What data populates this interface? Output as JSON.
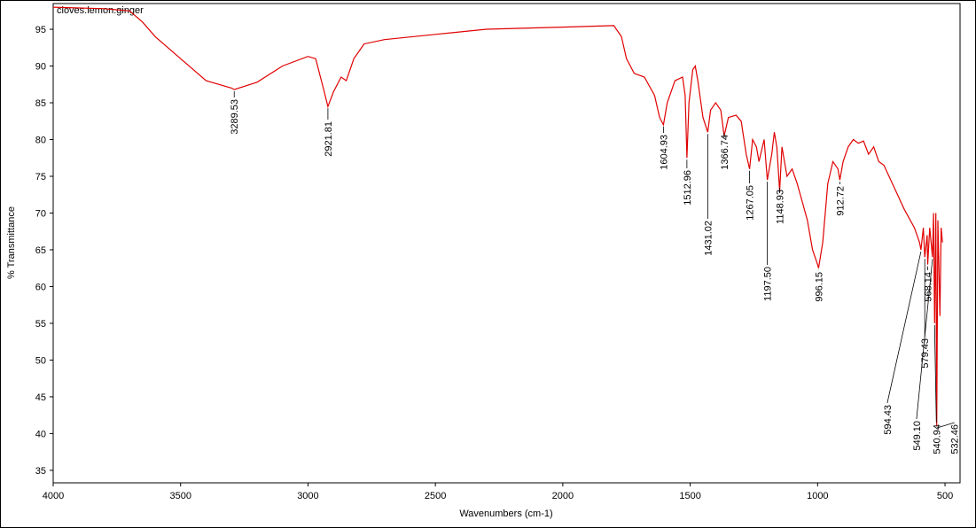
{
  "chart_data": {
    "type": "line",
    "title": "cloves.lemon.ginger",
    "x_label": "Wavenumbers (cm-1)",
    "y_label": "% Transmittance",
    "xlim": [
      4000,
      441
    ],
    "ylim": [
      33.3,
      98.5
    ],
    "xticks": [
      4000,
      3500,
      3000,
      2500,
      2000,
      1500,
      1000,
      500
    ],
    "yticks": [
      35,
      40,
      45,
      50,
      55,
      60,
      65,
      70,
      75,
      80,
      85,
      90,
      95
    ],
    "series": [
      {
        "color": "#e00000",
        "x": [
          4000,
          3800,
          3700,
          3650,
          3600,
          3500,
          3400,
          3300,
          3289.53,
          3200,
          3100,
          3000,
          2970,
          2940,
          2921.81,
          2900,
          2870,
          2850,
          2820,
          2780,
          2700,
          2500,
          2300,
          2000,
          1800,
          1770,
          1750,
          1720,
          1680,
          1640,
          1620,
          1604.93,
          1590,
          1560,
          1530,
          1520,
          1512.96,
          1505,
          1490,
          1480,
          1470,
          1450,
          1431.02,
          1420,
          1400,
          1380,
          1366.74,
          1350,
          1320,
          1300,
          1280,
          1267.05,
          1255,
          1240,
          1230,
          1210,
          1197.5,
          1180,
          1170,
          1160,
          1148.93,
          1140,
          1120,
          1100,
          1080,
          1060,
          1040,
          1020,
          1000,
          996.15,
          980,
          960,
          940,
          920,
          912.72,
          900,
          880,
          860,
          840,
          820,
          800,
          780,
          760,
          740,
          700,
          660,
          620,
          600,
          594.43,
          585,
          579.43,
          570,
          568.14,
          560,
          549.1,
          545,
          540.94,
          536,
          532.46,
          528,
          520,
          515,
          510
        ],
        "values": [
          98,
          97.8,
          97.5,
          96,
          94,
          91,
          88,
          87,
          86.8,
          87.8,
          90,
          91.3,
          91,
          87,
          84.5,
          86.5,
          88.5,
          88,
          91,
          93,
          93.6,
          94.3,
          95,
          95.3,
          95.5,
          94,
          91,
          89,
          88.5,
          86,
          83,
          82,
          85,
          88,
          88.5,
          86,
          77.5,
          85,
          89.5,
          90,
          88,
          83,
          81,
          84,
          85,
          84,
          80.5,
          83,
          83.3,
          82.5,
          78,
          76,
          80,
          79,
          77,
          80,
          74.5,
          78,
          81,
          79,
          73,
          79,
          75,
          76,
          74,
          71.5,
          69,
          65,
          63,
          62.5,
          66,
          74,
          77,
          76,
          74.5,
          77,
          79,
          80,
          79.5,
          79.8,
          78,
          79,
          77,
          76.5,
          73.5,
          70.5,
          68,
          66,
          65,
          68,
          64,
          67,
          63,
          68,
          64,
          70,
          55,
          70,
          41,
          69,
          56,
          68,
          66
        ]
      }
    ],
    "peaks": [
      3289.53,
      2921.81,
      1604.93,
      1512.96,
      1431.02,
      1366.74,
      1267.05,
      {
        "value": 1197.5,
        "label": "1197.50"
      },
      1148.93,
      996.15,
      912.72,
      594.43,
      579.43,
      568.14,
      {
        "value": 549.1,
        "label": "549.10"
      },
      540.94,
      532.46
    ]
  }
}
